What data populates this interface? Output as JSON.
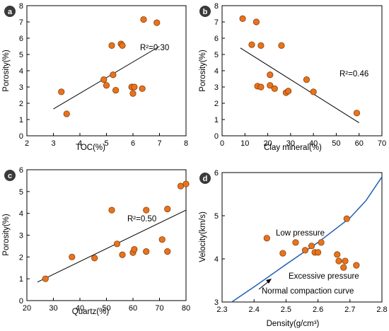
{
  "figure": {
    "panels": [
      "a",
      "b",
      "c",
      "d"
    ]
  },
  "style": {
    "marker_fill": "#e8731e",
    "marker_stroke": "#8a3e05",
    "curve_color": "#1f5fb4",
    "badge_color": "#3a3a3a"
  },
  "chart_data": [
    {
      "panel": "a",
      "type": "scatter",
      "xlabel": "TOC(%)",
      "ylabel": "Porosity(%)",
      "xlim": [
        2,
        8
      ],
      "ylim": [
        0,
        8
      ],
      "xticks": [
        2,
        3,
        4,
        5,
        6,
        7,
        8
      ],
      "yticks": [
        0,
        1,
        2,
        3,
        4,
        5,
        6,
        7,
        8
      ],
      "annotation": "R²=0.30",
      "points": [
        {
          "x": 3.3,
          "y": 2.7
        },
        {
          "x": 3.5,
          "y": 1.35
        },
        {
          "x": 4.9,
          "y": 3.45
        },
        {
          "x": 5.0,
          "y": 3.1
        },
        {
          "x": 5.2,
          "y": 5.55
        },
        {
          "x": 5.25,
          "y": 3.75
        },
        {
          "x": 5.35,
          "y": 2.8
        },
        {
          "x": 5.55,
          "y": 5.65
        },
        {
          "x": 5.6,
          "y": 5.55
        },
        {
          "x": 5.95,
          "y": 3.0
        },
        {
          "x": 6.0,
          "y": 2.6
        },
        {
          "x": 6.05,
          "y": 3.0
        },
        {
          "x": 6.35,
          "y": 2.9
        },
        {
          "x": 6.4,
          "y": 7.15
        },
        {
          "x": 6.9,
          "y": 6.95
        }
      ],
      "fit": [
        [
          3.0,
          1.65
        ],
        [
          7.0,
          5.5
        ]
      ],
      "grid": false
    },
    {
      "panel": "b",
      "type": "scatter",
      "xlabel": "Clay mineral(%)",
      "ylabel": "Porosity(%)",
      "xlim": [
        0,
        70
      ],
      "ylim": [
        0,
        8
      ],
      "xticks": [
        0,
        10,
        20,
        30,
        40,
        50,
        60,
        70
      ],
      "yticks": [
        0,
        1,
        2,
        3,
        4,
        5,
        6,
        7,
        8
      ],
      "annotation": "R²=0.46",
      "points": [
        {
          "x": 9,
          "y": 7.2
        },
        {
          "x": 13,
          "y": 5.6
        },
        {
          "x": 15,
          "y": 7.0
        },
        {
          "x": 15.5,
          "y": 3.05
        },
        {
          "x": 17,
          "y": 3.0
        },
        {
          "x": 17,
          "y": 5.55
        },
        {
          "x": 21,
          "y": 3.75
        },
        {
          "x": 21,
          "y": 3.1
        },
        {
          "x": 23,
          "y": 2.9
        },
        {
          "x": 26,
          "y": 5.55
        },
        {
          "x": 28,
          "y": 2.65
        },
        {
          "x": 29,
          "y": 2.75
        },
        {
          "x": 37,
          "y": 3.45
        },
        {
          "x": 40,
          "y": 2.7
        },
        {
          "x": 59,
          "y": 1.4
        }
      ],
      "fit": [
        [
          8,
          5.4
        ],
        [
          60,
          0.8
        ]
      ],
      "grid": false
    },
    {
      "panel": "c",
      "type": "scatter",
      "xlabel": "Quartz(%)",
      "ylabel": "Porosity(%)",
      "xlim": [
        20,
        80
      ],
      "ylim": [
        0,
        6
      ],
      "xticks": [
        20,
        30,
        40,
        50,
        60,
        70,
        80
      ],
      "yticks": [
        0,
        1,
        2,
        3,
        4,
        5,
        6
      ],
      "annotation": "R²=0.50",
      "points": [
        {
          "x": 27,
          "y": 1.0
        },
        {
          "x": 37,
          "y": 2.0
        },
        {
          "x": 45.5,
          "y": 1.95
        },
        {
          "x": 52,
          "y": 4.15
        },
        {
          "x": 54,
          "y": 2.6
        },
        {
          "x": 56,
          "y": 2.1
        },
        {
          "x": 60,
          "y": 2.2
        },
        {
          "x": 60.5,
          "y": 2.35
        },
        {
          "x": 65,
          "y": 4.15
        },
        {
          "x": 65,
          "y": 2.25
        },
        {
          "x": 71,
          "y": 2.8
        },
        {
          "x": 73,
          "y": 4.2
        },
        {
          "x": 73,
          "y": 2.25
        },
        {
          "x": 78,
          "y": 5.25
        },
        {
          "x": 80,
          "y": 5.35
        }
      ],
      "fit": [
        [
          24,
          0.85
        ],
        [
          80,
          4.15
        ]
      ],
      "grid": false
    },
    {
      "panel": "d",
      "type": "scatter",
      "xlabel": "Density(g/cm³)",
      "ylabel": "Velocity(km/s)",
      "xlim": [
        2.3,
        2.8
      ],
      "ylim": [
        3,
        6
      ],
      "xticks": [
        2.3,
        2.4,
        2.5,
        2.6,
        2.7,
        2.8
      ],
      "yticks": [
        3,
        4,
        5,
        6
      ],
      "annotations": [
        "Low pressure",
        "Excessive pressure",
        "Normal compaction curve"
      ],
      "points": [
        {
          "x": 2.44,
          "y": 4.48
        },
        {
          "x": 2.49,
          "y": 4.13
        },
        {
          "x": 2.53,
          "y": 4.38
        },
        {
          "x": 2.56,
          "y": 4.2
        },
        {
          "x": 2.58,
          "y": 4.3
        },
        {
          "x": 2.59,
          "y": 4.15
        },
        {
          "x": 2.6,
          "y": 4.15
        },
        {
          "x": 2.61,
          "y": 4.38
        },
        {
          "x": 2.66,
          "y": 4.1
        },
        {
          "x": 2.665,
          "y": 3.95
        },
        {
          "x": 2.68,
          "y": 3.8
        },
        {
          "x": 2.685,
          "y": 3.95
        },
        {
          "x": 2.69,
          "y": 4.93
        },
        {
          "x": 2.72,
          "y": 3.85
        }
      ],
      "curve": [
        [
          2.33,
          3.0
        ],
        [
          2.4,
          3.35
        ],
        [
          2.5,
          3.87
        ],
        [
          2.6,
          4.38
        ],
        [
          2.7,
          4.95
        ],
        [
          2.75,
          5.35
        ],
        [
          2.8,
          5.9
        ]
      ],
      "grid": false
    }
  ]
}
